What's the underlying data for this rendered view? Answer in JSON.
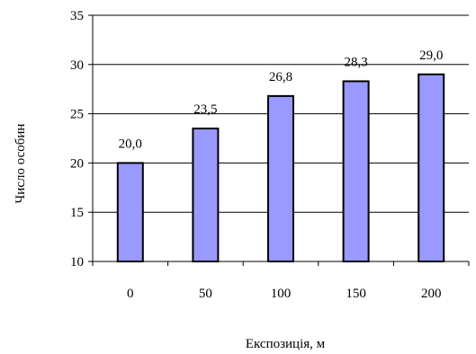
{
  "chart_data": {
    "type": "bar",
    "categories": [
      "0",
      "50",
      "100",
      "150",
      "200"
    ],
    "values": [
      20.0,
      23.5,
      26.8,
      28.3,
      29.0
    ],
    "data_labels": [
      "20,0",
      "23,5",
      "26,8",
      "28,3",
      "29,0"
    ],
    "xlabel": "Експозиція, м",
    "ylabel": "Число особин",
    "ylim": [
      10,
      35
    ],
    "yticks": [
      10,
      15,
      20,
      25,
      30,
      35
    ],
    "grid": true,
    "bar_color": "#9999ff",
    "bar_edge_color": "#000000"
  }
}
